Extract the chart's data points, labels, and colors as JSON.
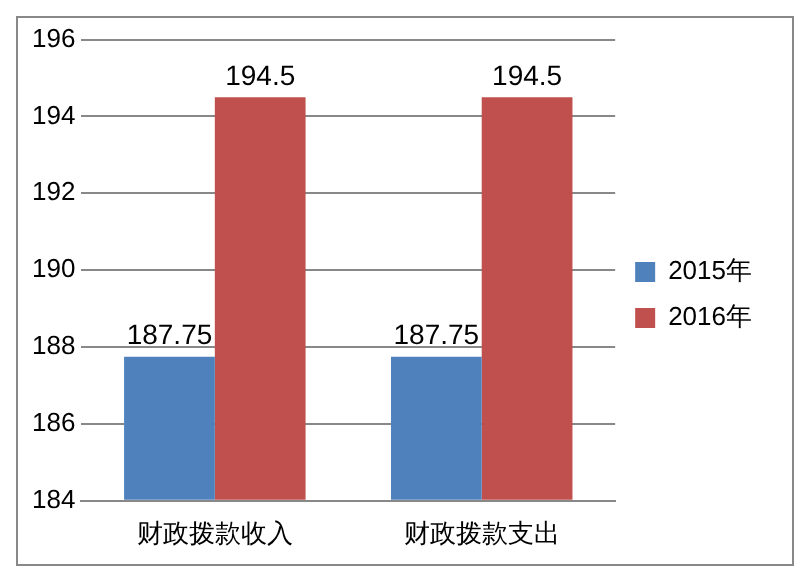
{
  "chart_data": {
    "type": "bar",
    "categories": [
      "财政拨款收入",
      "财政拨款支出"
    ],
    "series": [
      {
        "name": "2015年",
        "color": "#4f81bd",
        "values": [
          187.75,
          187.75
        ]
      },
      {
        "name": "2016年",
        "color": "#c0504d",
        "values": [
          194.5,
          194.5
        ]
      }
    ],
    "ylim": [
      184,
      196
    ],
    "yticks": [
      184,
      186,
      188,
      190,
      192,
      194,
      196
    ],
    "grid": "y",
    "legend": "right",
    "data_labels": true
  }
}
